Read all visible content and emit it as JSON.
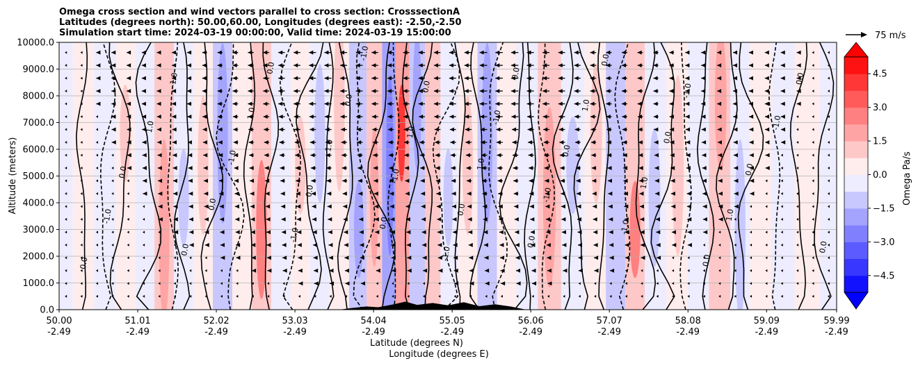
{
  "chart_data": {
    "type": "heatmap",
    "title_lines": [
      "Omega cross section and wind vectors parallel to cross section: CrosssectionA",
      "Latitudes (degrees north): 50.00,60.00, Longitudes (degrees east): -2.50,-2.50",
      "Simulation start time: 2024-03-19 00:00:00, Valid time: 2024-03-19 15:00:00"
    ],
    "xlabel_lines": [
      "Latitude (degrees N)",
      "Longitude (degrees E)"
    ],
    "ylabel": "Altitude (meters)",
    "x_ticks": [
      {
        "lat": 50.0,
        "lat_label": "50.00",
        "lon_label": "-2.49"
      },
      {
        "lat": 51.01,
        "lat_label": "51.01",
        "lon_label": "-2.49"
      },
      {
        "lat": 52.02,
        "lat_label": "52.02",
        "lon_label": "-2.49"
      },
      {
        "lat": 53.03,
        "lat_label": "53.03",
        "lon_label": "-2.49"
      },
      {
        "lat": 54.04,
        "lat_label": "54.04",
        "lon_label": "-2.49"
      },
      {
        "lat": 55.05,
        "lat_label": "55.05",
        "lon_label": "-2.49"
      },
      {
        "lat": 56.06,
        "lat_label": "56.06",
        "lon_label": "-2.49"
      },
      {
        "lat": 57.07,
        "lat_label": "57.07",
        "lon_label": "-2.49"
      },
      {
        "lat": 58.08,
        "lat_label": "58.08",
        "lon_label": "-2.49"
      },
      {
        "lat": 59.09,
        "lat_label": "59.09",
        "lon_label": "-2.49"
      },
      {
        "lat": 59.99,
        "lat_label": "59.99",
        "lon_label": "-2.49"
      }
    ],
    "xlim": [
      50.0,
      59.99
    ],
    "y_ticks": [
      0,
      1000,
      2000,
      3000,
      4000,
      5000,
      6000,
      7000,
      8000,
      9000,
      10000
    ],
    "y_tick_labels": [
      "0.0",
      "1000.0",
      "2000.0",
      "3000.0",
      "4000.0",
      "5000.0",
      "6000.0",
      "7000.0",
      "8000.0",
      "9000.0",
      "10000.0"
    ],
    "ylim": [
      0,
      10000
    ],
    "grid": "horizontal",
    "colorbar": {
      "label": "Omega Pa/s",
      "range": [
        -5.25,
        5.25
      ],
      "step": 0.75,
      "tick_values": [
        -4.5,
        -3.0,
        -1.5,
        0.0,
        1.5,
        3.0,
        4.5
      ],
      "tick_labels": [
        "−4.5",
        "−3.0",
        "−1.5",
        "0.0",
        "1.5",
        "3.0",
        "4.5"
      ],
      "extend": "both",
      "low_color": "#0000ff",
      "mid_color": "#ffffff",
      "high_color": "#ff0000"
    },
    "quiver_key": {
      "label": "75 m/s",
      "speed": 75
    },
    "field_bands": [
      {
        "lat": 50.05,
        "omega": -0.2
      },
      {
        "lat": 50.3,
        "omega": 0.3
      },
      {
        "lat": 50.6,
        "omega": -0.4
      },
      {
        "lat": 50.85,
        "omega": 0.6
      },
      {
        "lat": 51.1,
        "omega": -0.3
      },
      {
        "lat": 51.35,
        "omega": 0.9
      },
      {
        "lat": 51.6,
        "omega": -0.6
      },
      {
        "lat": 51.85,
        "omega": 0.5
      },
      {
        "lat": 52.1,
        "omega": -1.2
      },
      {
        "lat": 52.35,
        "omega": 0.4
      },
      {
        "lat": 52.6,
        "omega": 1.3
      },
      {
        "lat": 52.85,
        "omega": -0.4
      },
      {
        "lat": 53.1,
        "omega": 0.5
      },
      {
        "lat": 53.35,
        "omega": -0.6
      },
      {
        "lat": 53.6,
        "omega": 0.7
      },
      {
        "lat": 53.85,
        "omega": -0.9
      },
      {
        "lat": 54.05,
        "omega": 1.0
      },
      {
        "lat": 54.25,
        "omega": -1.6
      },
      {
        "lat": 54.4,
        "omega": 2.1
      },
      {
        "lat": 54.6,
        "omega": -1.1
      },
      {
        "lat": 54.8,
        "omega": 0.8
      },
      {
        "lat": 55.0,
        "omega": -0.5
      },
      {
        "lat": 55.25,
        "omega": 0.6
      },
      {
        "lat": 55.5,
        "omega": -0.9
      },
      {
        "lat": 55.75,
        "omega": 0.4
      },
      {
        "lat": 56.0,
        "omega": -0.3
      },
      {
        "lat": 56.3,
        "omega": 1.1
      },
      {
        "lat": 56.6,
        "omega": -0.5
      },
      {
        "lat": 56.9,
        "omega": 0.7
      },
      {
        "lat": 57.15,
        "omega": -0.8
      },
      {
        "lat": 57.4,
        "omega": 1.4
      },
      {
        "lat": 57.65,
        "omega": -0.6
      },
      {
        "lat": 57.95,
        "omega": 0.5
      },
      {
        "lat": 58.2,
        "omega": -0.4
      },
      {
        "lat": 58.5,
        "omega": 0.9
      },
      {
        "lat": 58.75,
        "omega": -0.7
      },
      {
        "lat": 59.0,
        "omega": 0.4
      },
      {
        "lat": 59.3,
        "omega": -0.2
      },
      {
        "lat": 59.6,
        "omega": 0.3
      },
      {
        "lat": 59.95,
        "omega": -0.2
      }
    ],
    "contour_lines": [
      {
        "lat": 50.3,
        "level": "0.0"
      },
      {
        "lat": 50.6,
        "level": "-1.0"
      },
      {
        "lat": 50.8,
        "level": "0.0"
      },
      {
        "lat": 51.15,
        "level": "1.0"
      },
      {
        "lat": 51.45,
        "level": "-1.0"
      },
      {
        "lat": 51.6,
        "level": "0.0"
      },
      {
        "lat": 51.95,
        "level": "0.0"
      },
      {
        "lat": 52.2,
        "level": "-1.0"
      },
      {
        "lat": 52.45,
        "level": "1.0"
      },
      {
        "lat": 52.7,
        "level": "0.0"
      },
      {
        "lat": 53.0,
        "level": "-1.0"
      },
      {
        "lat": 53.2,
        "level": "0.0"
      },
      {
        "lat": 53.45,
        "level": "1.0"
      },
      {
        "lat": 53.7,
        "level": "0.0"
      },
      {
        "lat": 53.9,
        "level": "-1.0"
      },
      {
        "lat": 54.15,
        "level": "0.0"
      },
      {
        "lat": 54.3,
        "level": "-1.0"
      },
      {
        "lat": 54.5,
        "level": "1.0"
      },
      {
        "lat": 54.7,
        "level": "0.0"
      },
      {
        "lat": 54.95,
        "level": "-1.0"
      },
      {
        "lat": 55.15,
        "level": "0.0"
      },
      {
        "lat": 55.4,
        "level": "1.0"
      },
      {
        "lat": 55.6,
        "level": "-1.0"
      },
      {
        "lat": 55.85,
        "level": "0.0"
      },
      {
        "lat": 56.05,
        "level": "0.0"
      },
      {
        "lat": 56.25,
        "level": "-1.0"
      },
      {
        "lat": 56.5,
        "level": "0.0"
      },
      {
        "lat": 56.75,
        "level": "1.0"
      },
      {
        "lat": 57.0,
        "level": "0.0"
      },
      {
        "lat": 57.25,
        "level": "-1.0"
      },
      {
        "lat": 57.5,
        "level": "1.0"
      },
      {
        "lat": 57.8,
        "level": "0.0"
      },
      {
        "lat": 58.05,
        "level": "-1.0"
      },
      {
        "lat": 58.3,
        "level": "0.0"
      },
      {
        "lat": 58.6,
        "level": "1.0"
      },
      {
        "lat": 58.85,
        "level": "0.0"
      },
      {
        "lat": 59.2,
        "level": "-1.0"
      },
      {
        "lat": 59.5,
        "level": "0.0"
      },
      {
        "lat": 59.8,
        "level": "0.0"
      }
    ],
    "wind_profile": [
      {
        "lat": 50.05,
        "u_upper": -5
      },
      {
        "lat": 50.5,
        "u_upper": -8
      },
      {
        "lat": 51.0,
        "u_upper": -12
      },
      {
        "lat": 51.5,
        "u_upper": -18
      },
      {
        "lat": 52.0,
        "u_upper": -22
      },
      {
        "lat": 52.5,
        "u_upper": -26
      },
      {
        "lat": 53.0,
        "u_upper": -30
      },
      {
        "lat": 53.5,
        "u_upper": -32
      },
      {
        "lat": 54.0,
        "u_upper": -30
      },
      {
        "lat": 54.5,
        "u_upper": -28
      },
      {
        "lat": 55.0,
        "u_upper": -30
      },
      {
        "lat": 55.5,
        "u_upper": -34
      },
      {
        "lat": 56.0,
        "u_upper": -32
      },
      {
        "lat": 56.5,
        "u_upper": -30
      },
      {
        "lat": 57.0,
        "u_upper": -26
      },
      {
        "lat": 57.5,
        "u_upper": -24
      },
      {
        "lat": 58.0,
        "u_upper": -20
      },
      {
        "lat": 58.5,
        "u_upper": -16
      },
      {
        "lat": 59.0,
        "u_upper": -12
      },
      {
        "lat": 59.5,
        "u_upper": -8
      },
      {
        "lat": 59.95,
        "u_upper": -5
      }
    ],
    "terrain": [
      {
        "lat": 50.0,
        "h": 0
      },
      {
        "lat": 53.6,
        "h": 0
      },
      {
        "lat": 53.75,
        "h": 60
      },
      {
        "lat": 53.95,
        "h": 120
      },
      {
        "lat": 54.1,
        "h": 90
      },
      {
        "lat": 54.3,
        "h": 200
      },
      {
        "lat": 54.45,
        "h": 300
      },
      {
        "lat": 54.6,
        "h": 180
      },
      {
        "lat": 54.8,
        "h": 250
      },
      {
        "lat": 55.0,
        "h": 160
      },
      {
        "lat": 55.2,
        "h": 280
      },
      {
        "lat": 55.4,
        "h": 130
      },
      {
        "lat": 55.6,
        "h": 200
      },
      {
        "lat": 55.8,
        "h": 120
      },
      {
        "lat": 56.0,
        "h": 0
      },
      {
        "lat": 59.99,
        "h": 0
      }
    ]
  }
}
